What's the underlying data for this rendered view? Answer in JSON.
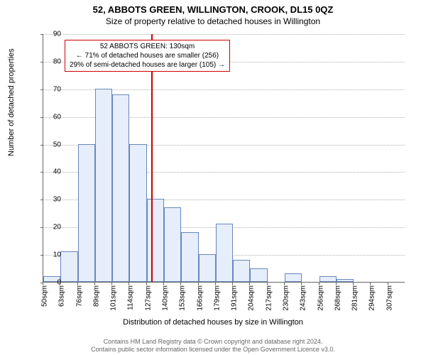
{
  "title_main": "52, ABBOTS GREEN, WILLINGTON, CROOK, DL15 0QZ",
  "title_sub": "Size of property relative to detached houses in Willington",
  "y_axis_label": "Number of detached properties",
  "x_axis_label": "Distribution of detached houses by size in Willington",
  "footer_line1": "Contains HM Land Registry data © Crown copyright and database right 2024.",
  "footer_line2": "Contains public sector information licensed under the Open Government Licence v3.0.",
  "chart": {
    "type": "histogram",
    "ylim": [
      0,
      90
    ],
    "ytick_step": 10,
    "xticks": [
      "50sqm",
      "63sqm",
      "76sqm",
      "89sqm",
      "101sqm",
      "114sqm",
      "127sqm",
      "140sqm",
      "153sqm",
      "166sqm",
      "179sqm",
      "191sqm",
      "204sqm",
      "217sqm",
      "230sqm",
      "243sqm",
      "256sqm",
      "268sqm",
      "281sqm",
      "294sqm",
      "307sqm"
    ],
    "bar_values": [
      2,
      11,
      50,
      70,
      68,
      50,
      30,
      27,
      18,
      10,
      21,
      8,
      5,
      0,
      3,
      0,
      2,
      1,
      0,
      0,
      0
    ],
    "bar_fill": "#e6eefb",
    "bar_border": "#6888bb",
    "grid_color": "#b0b0b0",
    "axis_color": "#666666",
    "background_color": "#ffffff",
    "ref_line_x_index": 6.25,
    "ref_line_color": "#cc0000",
    "annotation": {
      "line1": "52 ABBOTS GREEN: 130sqm",
      "line2": "← 71% of detached houses are smaller (256)",
      "line3": "29% of semi-detached houses are larger (105) →",
      "border_color": "#cc0000"
    }
  }
}
